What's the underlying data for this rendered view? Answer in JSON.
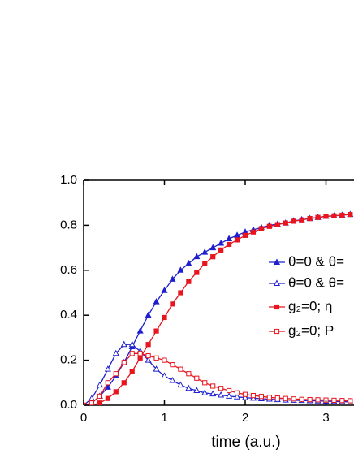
{
  "chart_data": {
    "type": "line",
    "x_label": "time (a.u.)",
    "xlim": [
      0,
      3.35
    ],
    "ylim": [
      0,
      1
    ],
    "xticks": [
      0,
      1,
      2,
      3
    ],
    "yticks": [
      {
        "value": 0,
        "label": "0.0"
      },
      0.2,
      0.4,
      0.6,
      0.8,
      {
        "value": 1,
        "label": "1.0"
      }
    ],
    "x": [
      0,
      0.1,
      0.2,
      0.3,
      0.4,
      0.5,
      0.6,
      0.7,
      0.8,
      0.9,
      1.0,
      1.1,
      1.2,
      1.3,
      1.4,
      1.5,
      1.6,
      1.7,
      1.8,
      1.9,
      2.0,
      2.1,
      2.2,
      2.3,
      2.4,
      2.5,
      2.6,
      2.7,
      2.8,
      2.9,
      3.0,
      3.1,
      3.2,
      3.3
    ],
    "series": [
      {
        "name": "θ=0 & θ=",
        "color": "#1f1fcf",
        "marker": "triangle-filled",
        "values": [
          0,
          0.01,
          0.04,
          0.08,
          0.13,
          0.19,
          0.26,
          0.33,
          0.4,
          0.46,
          0.51,
          0.56,
          0.6,
          0.63,
          0.66,
          0.68,
          0.7,
          0.72,
          0.74,
          0.755,
          0.77,
          0.78,
          0.79,
          0.8,
          0.805,
          0.81,
          0.82,
          0.825,
          0.83,
          0.835,
          0.84,
          0.842,
          0.845,
          0.848
        ]
      },
      {
        "name": "θ=0 & θ=",
        "color": "#1f1fcf",
        "marker": "triangle-open",
        "values": [
          0,
          0.03,
          0.09,
          0.16,
          0.23,
          0.27,
          0.27,
          0.24,
          0.2,
          0.16,
          0.13,
          0.11,
          0.09,
          0.075,
          0.065,
          0.055,
          0.05,
          0.045,
          0.04,
          0.037,
          0.034,
          0.031,
          0.029,
          0.027,
          0.025,
          0.023,
          0.022,
          0.021,
          0.02,
          0.019,
          0.018,
          0.017,
          0.016,
          0.015
        ]
      },
      {
        "name": "g₂=0; η",
        "color": "#e8141e",
        "marker": "square-filled",
        "values": [
          0,
          0,
          0.01,
          0.03,
          0.06,
          0.1,
          0.15,
          0.21,
          0.27,
          0.33,
          0.39,
          0.45,
          0.5,
          0.55,
          0.59,
          0.63,
          0.66,
          0.69,
          0.715,
          0.735,
          0.755,
          0.77,
          0.785,
          0.795,
          0.803,
          0.81,
          0.818,
          0.824,
          0.83,
          0.835,
          0.84,
          0.842,
          0.845,
          0.848
        ]
      },
      {
        "name": "g₂=0; P",
        "color": "#e8141e",
        "marker": "square-open",
        "values": [
          0,
          0.01,
          0.04,
          0.1,
          0.14,
          0.19,
          0.23,
          0.23,
          0.22,
          0.21,
          0.2,
          0.18,
          0.16,
          0.14,
          0.12,
          0.1,
          0.085,
          0.075,
          0.065,
          0.055,
          0.048,
          0.043,
          0.039,
          0.035,
          0.032,
          0.03,
          0.028,
          0.026,
          0.025,
          0.024,
          0.023,
          0.022,
          0.021,
          0.02
        ]
      }
    ]
  }
}
